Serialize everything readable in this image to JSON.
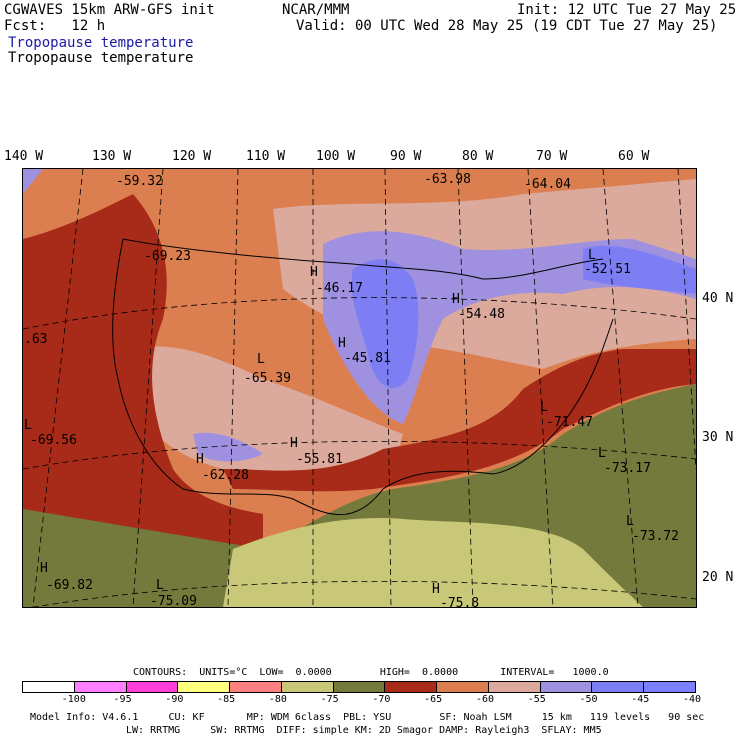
{
  "header": {
    "left_line1": "CGWAVES 15km ARW-GFS init",
    "left_line2": "Fcst:   12 h",
    "center": "NCAR/MMM",
    "init": "Init: 12 UTC Tue 27 May 25",
    "valid": "Valid: 00 UTC Wed 28 May 25 (19 CDT Tue 27 May 25)",
    "field_title_colored": "Tropopause temperature",
    "field_title": "Tropopause temperature"
  },
  "lon_labels": [
    "140 W",
    "130 W",
    "120 W",
    "110 W",
    "100 W",
    "90 W",
    "80 W",
    "70 W",
    "60 W"
  ],
  "lat_labels": [
    "40 N",
    "30 N",
    "20 N"
  ],
  "map_labels": {
    "v1": "-59.32",
    "v2": "-63.98",
    "v3": "-64.04",
    "v4": "-69.23",
    "v5": "-46.17",
    "v6": "-52.51",
    "v7": "-54.48",
    "v8": ".63",
    "v9": "-45.81",
    "v10": "-65.39",
    "v11": "-71.47",
    "v12": "-69.56",
    "v13": "-55.81",
    "v14": "-62.28",
    "v15": "-73.17",
    "v16": "-73.72",
    "v17": "-69.82",
    "v18": "-75.09",
    "v19": "-75.8",
    "H": "H",
    "L": "L"
  },
  "contours_line": "CONTOURS:  UNITS=°C  LOW=  0.0000        HIGH=  0.0000       INTERVAL=   1000.0",
  "colorbar": {
    "ticks": [
      "-100",
      "-95",
      "-90",
      "-85",
      "-80",
      "-75",
      "-70",
      "-65",
      "-60",
      "-55",
      "-50",
      "-45",
      "-40",
      "°C"
    ],
    "colors": [
      "#ffffff",
      "#ff7fff",
      "#ff40d8",
      "#ffff80",
      "#ff8080",
      "#c8c878",
      "#747a3c",
      "#a82a18",
      "#dc7f50",
      "#dcaa9c",
      "#a090e0",
      "#7e7ef4",
      "#7a80ff"
    ]
  },
  "footer": {
    "line1": "Model Info: V4.6.1     CU: KF       MP: WDM 6class  PBL: YSU        SF: Noah LSM     15 km   119 levels   90 sec",
    "line2": "LW: RRTMG     SW: RRTMG  DIFF: simple KM: 2D Smagor DAMP: Rayleigh3  SFLAY: MM5"
  },
  "colors": {
    "darkred": "#a82a18",
    "orange": "#dc7f50",
    "pink": "#dcaa9c",
    "lavender": "#a090e0",
    "blue": "#7e7ef4",
    "olive": "#747a3c",
    "khaki": "#c8c878"
  }
}
